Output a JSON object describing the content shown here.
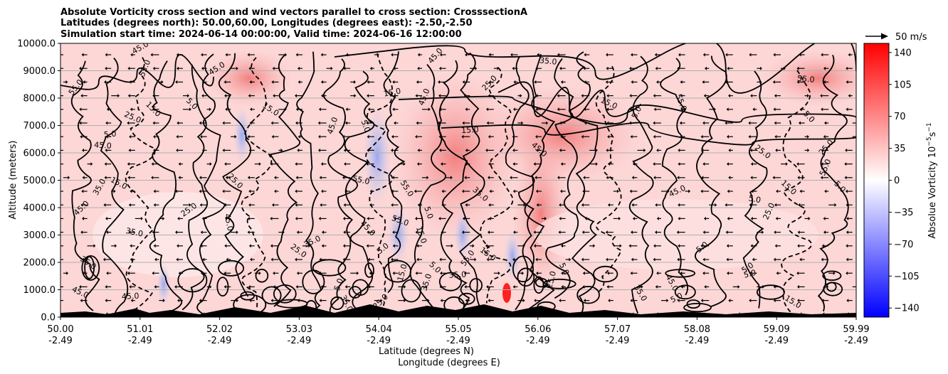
{
  "chart_data": {
    "type": "contour",
    "title_lines": [
      "Absolute Vorticity cross section and wind vectors parallel to cross section: CrosssectionA",
      "Latitudes (degrees north): 50.00,60.00, Longitudes (degrees east): -2.50,-2.50",
      "Simulation start time: 2024-06-14 00:00:00, Valid time: 2024-06-16 12:00:00"
    ],
    "ylabel": "Altitude (meters)",
    "xlabel_lat": "Latitude (degrees N)",
    "xlabel_lon": "Longitude (degrees E)",
    "ylim": [
      0,
      10000
    ],
    "yticks": [
      "0.0",
      "1000.0",
      "2000.0",
      "3000.0",
      "4000.0",
      "5000.0",
      "6000.0",
      "7000.0",
      "8000.0",
      "9000.0",
      "10000.0"
    ],
    "xticks_lat": [
      "50.00",
      "51.01",
      "52.02",
      "53.03",
      "54.04",
      "55.05",
      "56.06",
      "57.07",
      "58.08",
      "59.09",
      "59.99"
    ],
    "xticks_lon": [
      "-2.49",
      "-2.49",
      "-2.49",
      "-2.49",
      "-2.49",
      "-2.49",
      "-2.49",
      "-2.49",
      "-2.49",
      "-2.49",
      "-2.49"
    ],
    "colorbar": {
      "label": "Absolue Vorticity 10",
      "label_exponent": "−5",
      "label_unit2": "s",
      "label_exponent2": "−1",
      "ticks": [
        "140",
        "105",
        "70",
        "35",
        "0",
        "−35",
        "−70",
        "−105",
        "−140"
      ],
      "range": [
        -150,
        150
      ],
      "cmap": "bwr"
    },
    "quiver_key": "50 m/s",
    "contour_labels": [
      "5.0",
      "15.0",
      "25.0",
      "35.0",
      "45.0",
      "55.0"
    ],
    "grid": "horizontal"
  }
}
